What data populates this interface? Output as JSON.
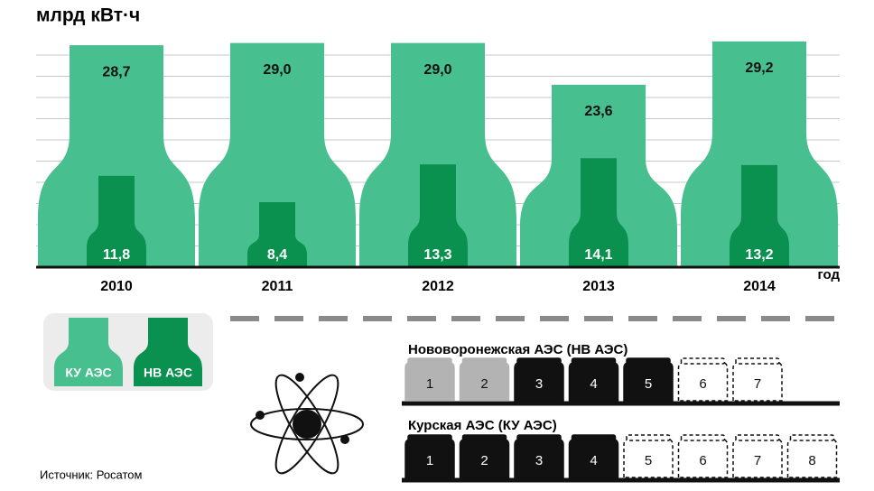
{
  "chart_data": {
    "type": "bottle",
    "unit_label": "млрд кВт·ч",
    "x_label": "год",
    "categories": [
      "2010",
      "2011",
      "2012",
      "2013",
      "2014"
    ],
    "ylim": [
      0,
      30
    ],
    "grid": true,
    "series": [
      {
        "name": "КУ АЭС",
        "color": "#48bf8e",
        "values": [
          28.7,
          29.0,
          29.0,
          23.6,
          29.2
        ],
        "value_labels": [
          "28,7",
          "29,0",
          "29,0",
          "23,6",
          "29,2"
        ]
      },
      {
        "name": "НВ АЭС",
        "color": "#0a9150",
        "values": [
          11.8,
          8.4,
          13.3,
          14.1,
          13.2
        ],
        "value_labels": [
          "11,8",
          "8,4",
          "13,3",
          "14,1",
          "13,2"
        ]
      }
    ]
  },
  "plants": [
    {
      "title": "Нововоронежская АЭС (НВ АЭС)",
      "units": [
        "1",
        "2",
        "3",
        "4",
        "5",
        "6",
        "7"
      ],
      "unit_colors": [
        "#b3b3b3",
        "#b3b3b3",
        "#111111",
        "#111111",
        "#111111",
        "#ffffff",
        "#ffffff"
      ]
    },
    {
      "title": "Курская АЭС (КУ АЭС)",
      "units": [
        "1",
        "2",
        "3",
        "4",
        "5",
        "6",
        "7",
        "8"
      ],
      "unit_colors": [
        "#111111",
        "#111111",
        "#111111",
        "#111111",
        "#ffffff",
        "#ffffff",
        "#ffffff",
        "#ffffff"
      ]
    }
  ],
  "source": "Источник: Росатом"
}
